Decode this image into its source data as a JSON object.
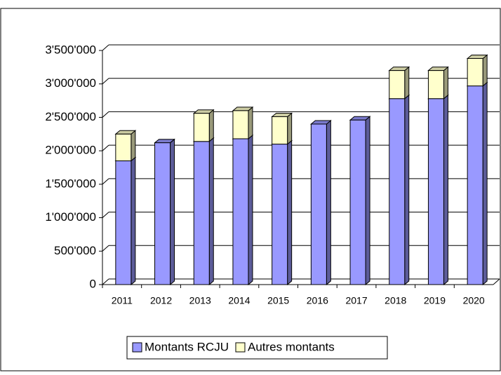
{
  "chart_data": {
    "type": "bar3d_stacked",
    "categories": [
      "2011",
      "2012",
      "2013",
      "2014",
      "2015",
      "2016",
      "2017",
      "2018",
      "2019",
      "2020"
    ],
    "series": [
      {
        "name": "Montants RCJU",
        "color": "#9999ff",
        "values": [
          1850000,
          2120000,
          2140000,
          2180000,
          2100000,
          2400000,
          2460000,
          2780000,
          2780000,
          2970000
        ]
      },
      {
        "name": "Autres montants",
        "color": "#ffffcc",
        "values": [
          400000,
          0,
          420000,
          420000,
          410000,
          0,
          0,
          420000,
          420000,
          410000
        ]
      }
    ],
    "ylim": [
      0,
      3500000
    ],
    "yticks": [
      0,
      {
        "value": 500000,
        "label": "500'000"
      },
      {
        "value": 1000000,
        "label": "1'000'000"
      },
      {
        "value": 1500000,
        "label": "1'500'000"
      },
      {
        "value": 2000000,
        "label": "2'000'000"
      },
      {
        "value": 2500000,
        "label": "2'500'000"
      },
      {
        "value": 3000000,
        "label": "3'000'000"
      },
      {
        "value": 3500000,
        "label": "3'500'000"
      }
    ],
    "grid": true,
    "legend": "bottom"
  }
}
